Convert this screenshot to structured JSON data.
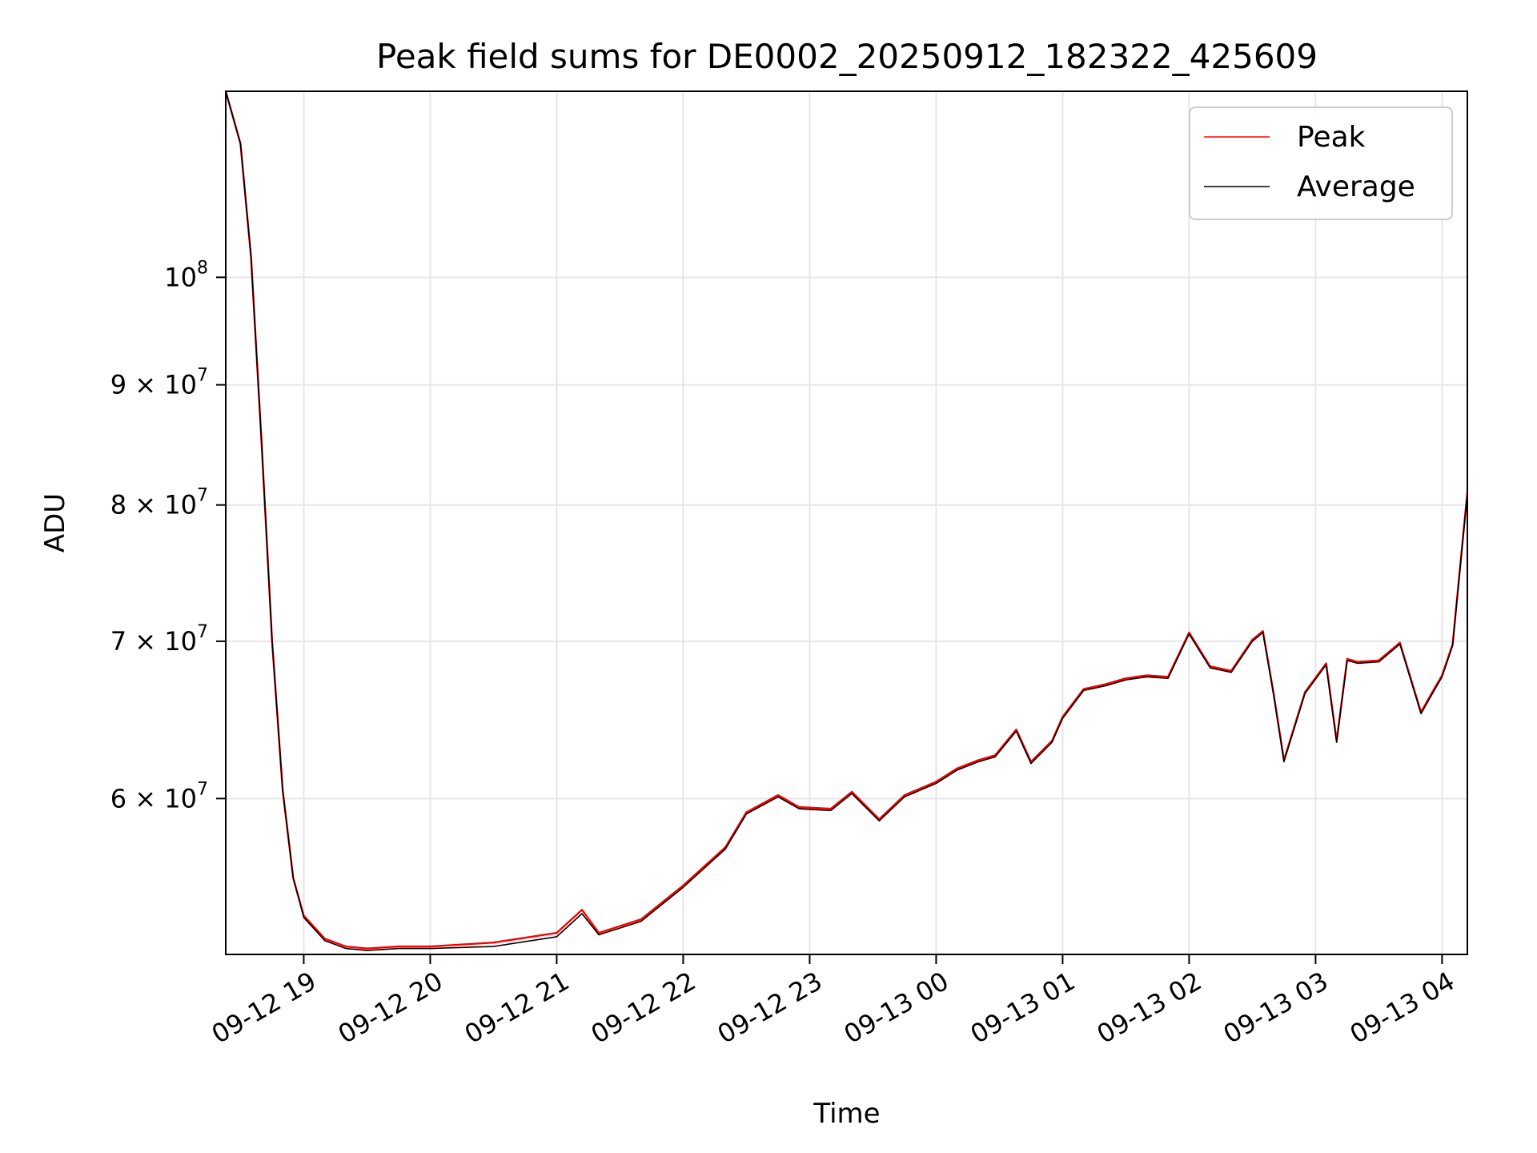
{
  "chart_data": {
    "type": "line",
    "title": "Peak field sums for DE0002_20250912_182322_425609",
    "xlabel": "Time",
    "ylabel": "ADU",
    "y_scale": "log",
    "xlim": [
      "2025-09-12 18:23",
      "2025-09-13 04:12"
    ],
    "ylim": [
      51500000,
      120000000
    ],
    "grid": true,
    "legend_position": "top-right",
    "x_ticks": [
      "09-12 19",
      "09-12 20",
      "09-12 21",
      "09-12 22",
      "09-12 23",
      "09-13 00",
      "09-13 01",
      "09-13 02",
      "09-13 03",
      "09-13 04"
    ],
    "y_ticks": [
      {
        "value": 60000000,
        "mantissa": "6",
        "exponent": "7"
      },
      {
        "value": 70000000,
        "mantissa": "7",
        "exponent": "7"
      },
      {
        "value": 80000000,
        "mantissa": "8",
        "exponent": "7"
      },
      {
        "value": 90000000,
        "mantissa": "9",
        "exponent": "7"
      },
      {
        "value": 100000000,
        "mantissa": "10",
        "exponent": "8"
      }
    ],
    "x": [
      "2025-09-12 18:23",
      "2025-09-12 18:30",
      "2025-09-12 18:35",
      "2025-09-12 18:40",
      "2025-09-12 18:45",
      "2025-09-12 18:50",
      "2025-09-12 18:55",
      "2025-09-12 19:00",
      "2025-09-12 19:10",
      "2025-09-12 19:20",
      "2025-09-12 19:30",
      "2025-09-12 19:45",
      "2025-09-12 20:00",
      "2025-09-12 20:30",
      "2025-09-12 21:00",
      "2025-09-12 21:12",
      "2025-09-12 21:20",
      "2025-09-12 21:40",
      "2025-09-12 22:00",
      "2025-09-12 22:20",
      "2025-09-12 22:30",
      "2025-09-12 22:45",
      "2025-09-12 22:55",
      "2025-09-12 23:10",
      "2025-09-12 23:20",
      "2025-09-12 23:33",
      "2025-09-12 23:45",
      "2025-09-13 00:00",
      "2025-09-13 00:10",
      "2025-09-13 00:20",
      "2025-09-13 00:28",
      "2025-09-13 00:38",
      "2025-09-13 00:45",
      "2025-09-13 00:55",
      "2025-09-13 01:00",
      "2025-09-13 01:10",
      "2025-09-13 01:20",
      "2025-09-13 01:30",
      "2025-09-13 01:40",
      "2025-09-13 01:50",
      "2025-09-13 02:00",
      "2025-09-13 02:10",
      "2025-09-13 02:20",
      "2025-09-13 02:30",
      "2025-09-13 02:35",
      "2025-09-13 02:40",
      "2025-09-13 02:45",
      "2025-09-13 02:55",
      "2025-09-13 03:05",
      "2025-09-13 03:10",
      "2025-09-13 03:15",
      "2025-09-13 03:20",
      "2025-09-13 03:30",
      "2025-09-13 03:40",
      "2025-09-13 03:50",
      "2025-09-13 03:55",
      "2025-09-13 04:00",
      "2025-09-13 04:05",
      "2025-09-13 04:12"
    ],
    "series": [
      {
        "name": "Peak",
        "color": "#ff0000",
        "values": [
          120000000,
          114000000,
          102000000,
          85000000,
          70000000,
          60500000,
          55500000,
          53500000,
          52300000,
          51900000,
          51800000,
          51900000,
          51900000,
          52100000,
          52600000,
          53800000,
          52600000,
          53300000,
          55100000,
          57200000,
          59200000,
          60200000,
          59500000,
          59400000,
          60400000,
          58800000,
          60200000,
          61000000,
          61800000,
          62300000,
          62600000,
          64200000,
          62200000,
          63500000,
          65000000,
          66800000,
          67100000,
          67500000,
          67700000,
          67600000,
          70600000,
          68300000,
          68000000,
          70100000,
          70700000,
          66600000,
          62300000,
          66600000,
          68500000,
          63500000,
          68800000,
          68600000,
          68700000,
          69900000,
          65300000,
          66500000,
          67700000,
          69800000,
          81000000
        ]
      },
      {
        "name": "Average",
        "color": "#000000",
        "values": [
          120000000,
          114000000,
          102000000,
          85000000,
          70000000,
          60500000,
          55500000,
          53400000,
          52200000,
          51800000,
          51700000,
          51800000,
          51800000,
          51900000,
          52400000,
          53600000,
          52500000,
          53200000,
          55000000,
          57100000,
          59100000,
          60100000,
          59400000,
          59300000,
          60300000,
          58700000,
          60100000,
          60900000,
          61700000,
          62200000,
          62500000,
          64100000,
          62100000,
          63400000,
          64900000,
          66700000,
          67000000,
          67400000,
          67600000,
          67500000,
          70500000,
          68200000,
          67900000,
          70000000,
          70600000,
          66500000,
          62200000,
          66500000,
          68400000,
          63400000,
          68700000,
          68500000,
          68600000,
          69800000,
          65200000,
          66400000,
          67600000,
          69700000,
          80900000
        ]
      }
    ]
  }
}
